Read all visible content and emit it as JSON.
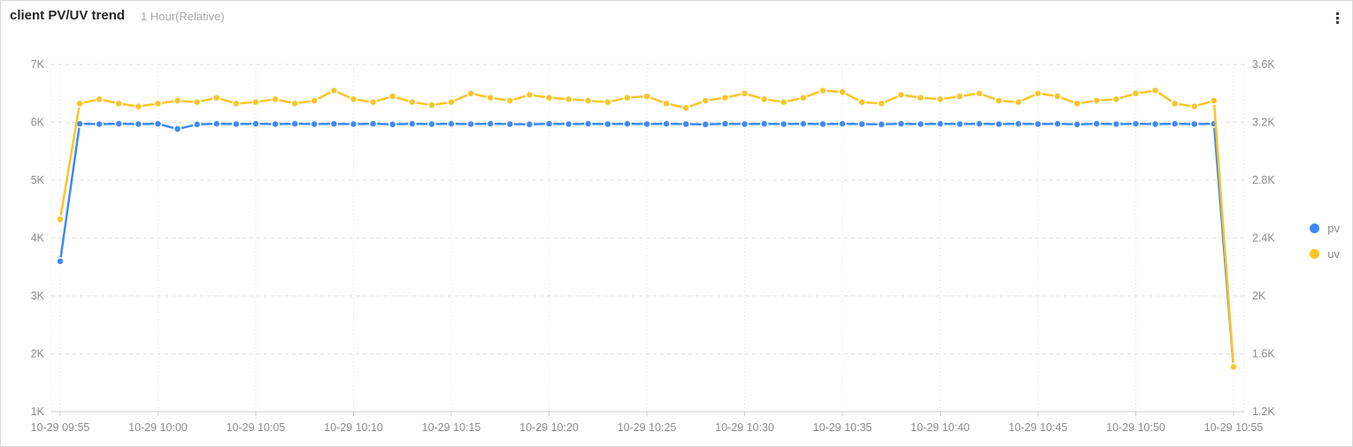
{
  "header": {
    "title": "client PV/UV trend",
    "subtitle": "1 Hour(Relative)",
    "menu_icon": "kebab-menu"
  },
  "colors": {
    "pv": "#3d8af7",
    "uv": "#fcc426",
    "grid": "#e2e2e2",
    "axis_line": "#cccccc",
    "axis_label": "#8c8c8c"
  },
  "legend": {
    "position": "right",
    "items": [
      {
        "label": "pv"
      },
      {
        "label": "uv"
      }
    ]
  },
  "chart_data": {
    "type": "line",
    "title": "client PV/UV trend",
    "xlabel": "",
    "ylabel_left": "",
    "ylabel_right": "",
    "grid": true,
    "legend_position": "right",
    "x": [
      "10-29 09:55",
      "10-29 09:56",
      "10-29 09:57",
      "10-29 09:58",
      "10-29 09:59",
      "10-29 10:00",
      "10-29 10:01",
      "10-29 10:02",
      "10-29 10:03",
      "10-29 10:04",
      "10-29 10:05",
      "10-29 10:06",
      "10-29 10:07",
      "10-29 10:08",
      "10-29 10:09",
      "10-29 10:10",
      "10-29 10:11",
      "10-29 10:12",
      "10-29 10:13",
      "10-29 10:14",
      "10-29 10:15",
      "10-29 10:16",
      "10-29 10:17",
      "10-29 10:18",
      "10-29 10:19",
      "10-29 10:20",
      "10-29 10:21",
      "10-29 10:22",
      "10-29 10:23",
      "10-29 10:24",
      "10-29 10:25",
      "10-29 10:26",
      "10-29 10:27",
      "10-29 10:28",
      "10-29 10:29",
      "10-29 10:30",
      "10-29 10:31",
      "10-29 10:32",
      "10-29 10:33",
      "10-29 10:34",
      "10-29 10:35",
      "10-29 10:36",
      "10-29 10:37",
      "10-29 10:38",
      "10-29 10:39",
      "10-29 10:40",
      "10-29 10:41",
      "10-29 10:42",
      "10-29 10:43",
      "10-29 10:44",
      "10-29 10:45",
      "10-29 10:46",
      "10-29 10:47",
      "10-29 10:48",
      "10-29 10:49",
      "10-29 10:50",
      "10-29 10:51",
      "10-29 10:52",
      "10-29 10:53",
      "10-29 10:54",
      "10-29 10:55"
    ],
    "x_tick_labels": [
      "10-29 09:55",
      "10-29 10:00",
      "10-29 10:05",
      "10-29 10:10",
      "10-29 10:15",
      "10-29 10:20",
      "10-29 10:25",
      "10-29 10:30",
      "10-29 10:35",
      "10-29 10:40",
      "10-29 10:45",
      "10-29 10:50",
      "10-29 10:55"
    ],
    "left_axis": {
      "min": 1000,
      "max": 7000,
      "ticks": [
        "7K",
        "6K",
        "5K",
        "4K",
        "3K",
        "2K",
        "1K"
      ]
    },
    "right_axis": {
      "min": 1200,
      "max": 3600,
      "ticks": [
        "3.6K",
        "3.2K",
        "2.8K",
        "2.4K",
        "2K",
        "1.6K",
        "1.2K"
      ]
    },
    "series": [
      {
        "name": "pv",
        "axis": "left",
        "color": "#3d8af7",
        "values": [
          3600,
          5975,
          5970,
          5975,
          5970,
          5975,
          5885,
          5965,
          5975,
          5970,
          5975,
          5970,
          5975,
          5970,
          5975,
          5970,
          5975,
          5965,
          5975,
          5970,
          5975,
          5970,
          5975,
          5970,
          5965,
          5975,
          5970,
          5975,
          5970,
          5975,
          5970,
          5975,
          5970,
          5965,
          5975,
          5970,
          5975,
          5970,
          5975,
          5970,
          5975,
          5970,
          5965,
          5975,
          5970,
          5975,
          5970,
          5975,
          5970,
          5975,
          5970,
          5975,
          5965,
          5975,
          5970,
          5975,
          5970,
          5975,
          5970,
          5975,
          1760
        ]
      },
      {
        "name": "uv",
        "axis": "right",
        "color": "#fcc426",
        "values": [
          2530,
          3330,
          3360,
          3330,
          3310,
          3330,
          3350,
          3340,
          3370,
          3330,
          3340,
          3360,
          3330,
          3350,
          3420,
          3360,
          3340,
          3380,
          3340,
          3320,
          3340,
          3400,
          3370,
          3350,
          3390,
          3370,
          3360,
          3350,
          3340,
          3370,
          3380,
          3330,
          3300,
          3350,
          3370,
          3400,
          3360,
          3340,
          3370,
          3420,
          3410,
          3340,
          3330,
          3390,
          3370,
          3360,
          3380,
          3400,
          3350,
          3340,
          3400,
          3380,
          3330,
          3350,
          3360,
          3400,
          3420,
          3330,
          3310,
          3350,
          1510
        ]
      }
    ]
  }
}
